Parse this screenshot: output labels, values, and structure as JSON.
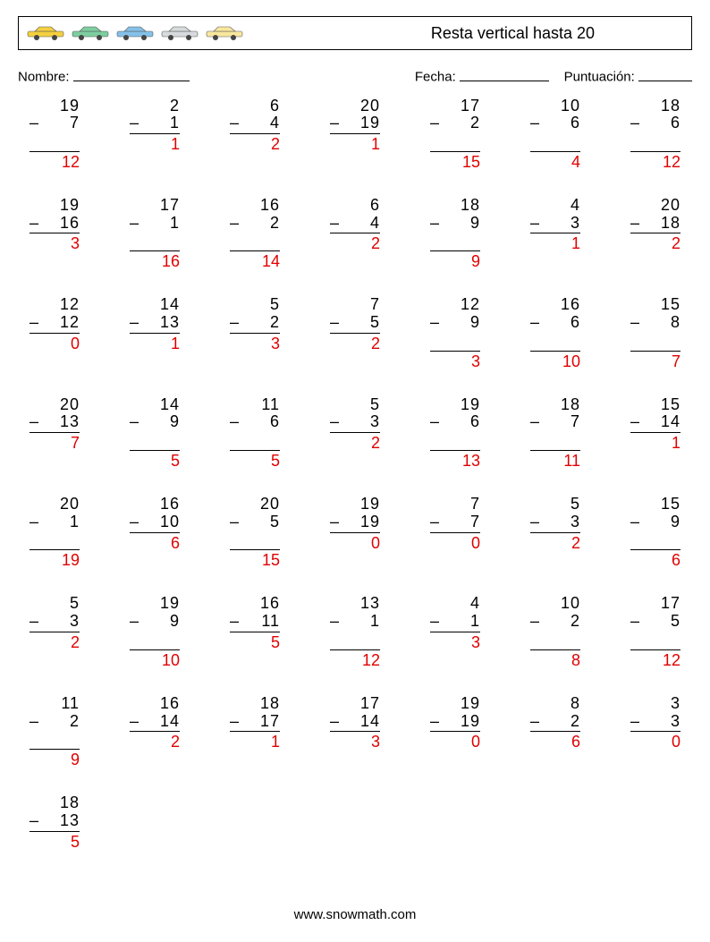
{
  "header": {
    "title": "Resta vertical hasta 20",
    "car_colors": [
      "#f4d03f",
      "#7dcea0",
      "#85c1e9",
      "#d7dbdd",
      "#f9e79f"
    ]
  },
  "info": {
    "name_label": "Nombre:",
    "date_label": "Fecha:",
    "score_label": "Puntuación:"
  },
  "style": {
    "answer_color": "#e00000",
    "text_color": "#000000",
    "background_color": "#ffffff",
    "fontsize_problem": 18,
    "columns": 7,
    "col_gap": 30,
    "row_gap": 28,
    "problem_width": 56
  },
  "problems": [
    {
      "a": 19,
      "b": 7,
      "r": 12
    },
    {
      "a": 2,
      "b": 1,
      "r": 1
    },
    {
      "a": 6,
      "b": 4,
      "r": 2
    },
    {
      "a": 20,
      "b": 19,
      "r": 1
    },
    {
      "a": 17,
      "b": 2,
      "r": 15
    },
    {
      "a": 10,
      "b": 6,
      "r": 4
    },
    {
      "a": 18,
      "b": 6,
      "r": 12
    },
    {
      "a": 19,
      "b": 16,
      "r": 3
    },
    {
      "a": 17,
      "b": 1,
      "r": 16
    },
    {
      "a": 16,
      "b": 2,
      "r": 14
    },
    {
      "a": 6,
      "b": 4,
      "r": 2
    },
    {
      "a": 18,
      "b": 9,
      "r": 9
    },
    {
      "a": 4,
      "b": 3,
      "r": 1
    },
    {
      "a": 20,
      "b": 18,
      "r": 2
    },
    {
      "a": 12,
      "b": 12,
      "r": 0
    },
    {
      "a": 14,
      "b": 13,
      "r": 1
    },
    {
      "a": 5,
      "b": 2,
      "r": 3
    },
    {
      "a": 7,
      "b": 5,
      "r": 2
    },
    {
      "a": 12,
      "b": 9,
      "r": 3
    },
    {
      "a": 16,
      "b": 6,
      "r": 10
    },
    {
      "a": 15,
      "b": 8,
      "r": 7
    },
    {
      "a": 20,
      "b": 13,
      "r": 7
    },
    {
      "a": 14,
      "b": 9,
      "r": 5
    },
    {
      "a": 11,
      "b": 6,
      "r": 5
    },
    {
      "a": 5,
      "b": 3,
      "r": 2
    },
    {
      "a": 19,
      "b": 6,
      "r": 13
    },
    {
      "a": 18,
      "b": 7,
      "r": 11
    },
    {
      "a": 15,
      "b": 14,
      "r": 1
    },
    {
      "a": 20,
      "b": 1,
      "r": 19
    },
    {
      "a": 16,
      "b": 10,
      "r": 6
    },
    {
      "a": 20,
      "b": 5,
      "r": 15
    },
    {
      "a": 19,
      "b": 19,
      "r": 0
    },
    {
      "a": 7,
      "b": 7,
      "r": 0
    },
    {
      "a": 5,
      "b": 3,
      "r": 2
    },
    {
      "a": 15,
      "b": 9,
      "r": 6
    },
    {
      "a": 5,
      "b": 3,
      "r": 2
    },
    {
      "a": 19,
      "b": 9,
      "r": 10
    },
    {
      "a": 16,
      "b": 11,
      "r": 5
    },
    {
      "a": 13,
      "b": 1,
      "r": 12
    },
    {
      "a": 4,
      "b": 1,
      "r": 3
    },
    {
      "a": 10,
      "b": 2,
      "r": 8
    },
    {
      "a": 17,
      "b": 5,
      "r": 12
    },
    {
      "a": 11,
      "b": 2,
      "r": 9
    },
    {
      "a": 16,
      "b": 14,
      "r": 2
    },
    {
      "a": 18,
      "b": 17,
      "r": 1
    },
    {
      "a": 17,
      "b": 14,
      "r": 3
    },
    {
      "a": 19,
      "b": 19,
      "r": 0
    },
    {
      "a": 8,
      "b": 2,
      "r": 6
    },
    {
      "a": 3,
      "b": 3,
      "r": 0
    },
    {
      "a": 18,
      "b": 13,
      "r": 5
    }
  ],
  "footer": "www.snowmath.com"
}
